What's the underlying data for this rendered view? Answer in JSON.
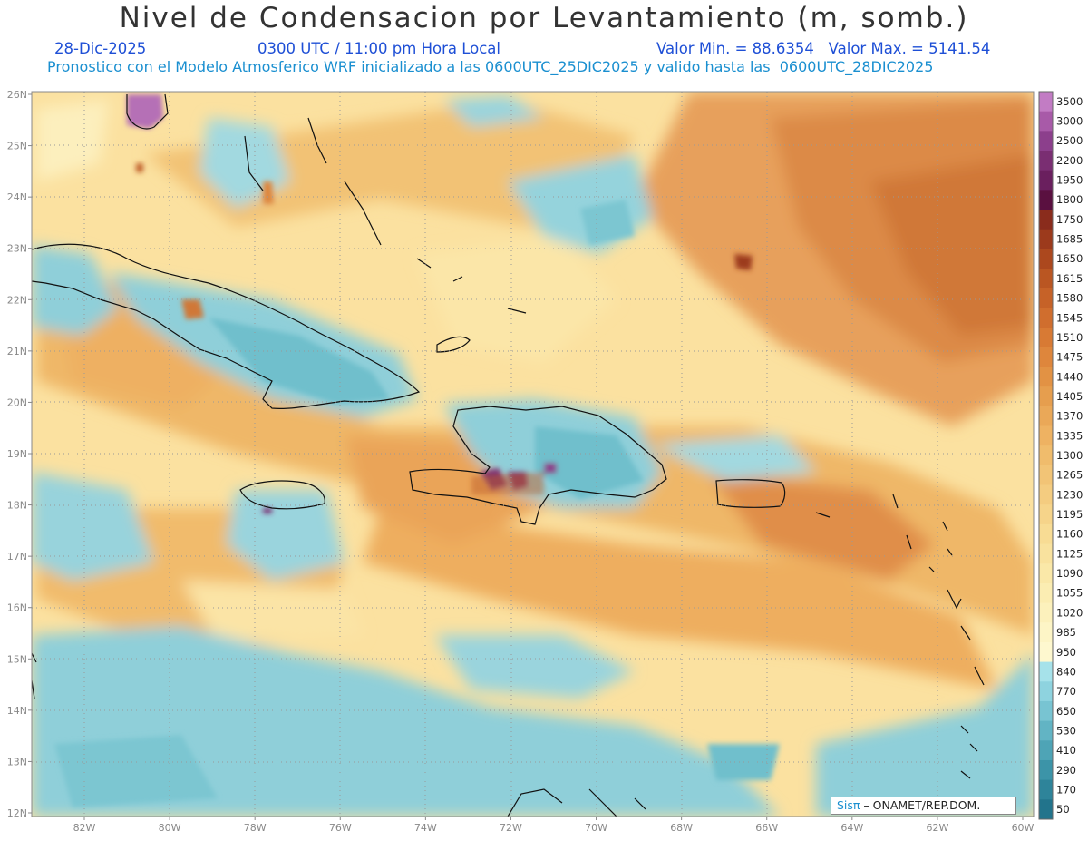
{
  "title": "Nivel de Condensacion por Levantamiento (m, somb.)",
  "date": "28-Dic-2025",
  "time": "0300 UTC / 11:00 pm Hora Local",
  "min_max": "Valor Min. = 88.6354   Valor Max. = 5141.54",
  "forecast_line": "Pronostico con el Modelo Atmosferico WRF inicializado a las 0600UTC_25DIC2025 y valido hasta las  0600UTC_28DIC2025",
  "lat_labels": [
    "26N",
    "25N",
    "24N",
    "23N",
    "22N",
    "21N",
    "20N",
    "19N",
    "18N",
    "17N",
    "16N",
    "15N",
    "14N",
    "13N",
    "12N"
  ],
  "lon_labels": [
    "82W",
    "80W",
    "78W",
    "76W",
    "74W",
    "72W",
    "70W",
    "68W",
    "66W",
    "64W",
    "62W",
    "60W"
  ],
  "colorbar": {
    "levels": [
      "3500",
      "3000",
      "2500",
      "2200",
      "1950",
      "1800",
      "1750",
      "1685",
      "1650",
      "1615",
      "1580",
      "1545",
      "1510",
      "1475",
      "1440",
      "1405",
      "1370",
      "1335",
      "1300",
      "1265",
      "1230",
      "1195",
      "1160",
      "1125",
      "1090",
      "1055",
      "1020",
      "985",
      "950",
      "840",
      "770",
      "650",
      "530",
      "410",
      "290",
      "170",
      "50"
    ],
    "colors": [
      "#c27cc4",
      "#a85aa8",
      "#8c3f8c",
      "#7a2e72",
      "#6a1f5e",
      "#5a1040",
      "#8a2c1c",
      "#9c3a1c",
      "#ac481e",
      "#ba5622",
      "#c66228",
      "#d06e2e",
      "#d87a34",
      "#de863c",
      "#e29244",
      "#e69e4e",
      "#eaa858",
      "#eeb262",
      "#f0bc6c",
      "#f2c476",
      "#f4cc80",
      "#f6d48a",
      "#f8dc94",
      "#f9e29e",
      "#fae8a8",
      "#fbedb2",
      "#fcf1bc",
      "#fdf5c6",
      "#fef8cf",
      "#a6e2ea",
      "#8ed3df",
      "#78c4d2",
      "#62b4c4",
      "#4ea4b6",
      "#3c94a8",
      "#2e849a",
      "#22748c"
    ]
  },
  "credit": {
    "brand": "Sisπ",
    "org": " – ONAMET/REP.DOM."
  }
}
